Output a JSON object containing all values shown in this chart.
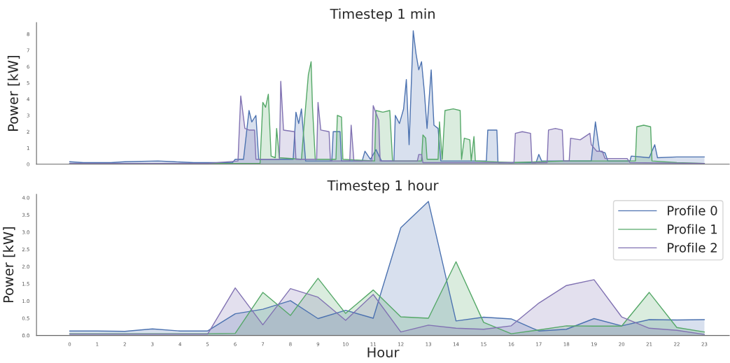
{
  "chart_data": [
    {
      "type": "area",
      "title": "Timestep 1 min",
      "ylabel": "Power [kW]",
      "xlim": [
        -1.2,
        23.9
      ],
      "ylim": [
        0,
        8.7
      ],
      "yticks": [
        0,
        1,
        2,
        3,
        4,
        5,
        6,
        7,
        8
      ],
      "tick_labels": "y",
      "grid": false,
      "legend": false,
      "series": [
        {
          "color": "#4c72b0",
          "x": [
            0,
            0.5,
            1.5,
            2,
            3.2,
            3.8,
            4.5,
            5.3,
            5.9,
            6.0,
            6.3,
            6.5,
            6.6,
            6.75,
            6.85,
            8.1,
            8.2,
            8.3,
            8.4,
            8.55,
            9.5,
            9.55,
            9.8,
            9.85,
            10.6,
            10.7,
            10.9,
            11.1,
            11.3,
            11.75,
            11.8,
            11.95,
            12.1,
            12.2,
            12.3,
            12.45,
            12.55,
            12.65,
            12.75,
            12.85,
            12.95,
            13.1,
            13.2,
            13.35,
            13.45,
            15.1,
            15.15,
            15.48,
            15.52,
            16.9,
            17.0,
            17.1,
            18.9,
            19.05,
            19.2,
            19.4,
            19.5,
            20.3,
            20.35,
            21.0,
            21.2,
            21.3,
            22.0,
            23
          ],
          "values": [
            0.15,
            0.1,
            0.1,
            0.15,
            0.2,
            0.15,
            0.1,
            0.1,
            0.1,
            0.3,
            0.3,
            3.3,
            2.6,
            3.0,
            0.3,
            0.3,
            3.2,
            2.5,
            3.4,
            0.2,
            0.2,
            2.0,
            2.0,
            0.2,
            0.2,
            0.8,
            0.3,
            0.9,
            0.2,
            0.2,
            3.0,
            2.5,
            3.4,
            5.2,
            1.2,
            8.2,
            6.8,
            5.8,
            6.3,
            4.5,
            2.2,
            5.8,
            2.4,
            2.2,
            0.2,
            0.2,
            2.1,
            2.1,
            0.1,
            0.1,
            0.6,
            0.2,
            0.2,
            2.6,
            0.8,
            0.7,
            0.2,
            0.2,
            0.5,
            0.4,
            1.2,
            0.4,
            0.45,
            0.45
          ]
        },
        {
          "color": "#55a868",
          "x": [
            0,
            3,
            5,
            6.9,
            7.0,
            7.1,
            7.2,
            7.3,
            7.45,
            7.5,
            7.6,
            8.4,
            8.5,
            8.65,
            8.75,
            8.8,
            8.9,
            9.65,
            9.7,
            9.85,
            9.9,
            11.05,
            11.1,
            11.35,
            11.6,
            11.7,
            12.75,
            12.8,
            12.9,
            12.95,
            13.35,
            13.4,
            13.5,
            13.6,
            13.9,
            14.15,
            14.2,
            14.3,
            14.5,
            14.55,
            14.65,
            14.7,
            16,
            18,
            20.5,
            20.55,
            20.8,
            21.05,
            21.1,
            22,
            23
          ],
          "values": [
            0.05,
            0.05,
            0.05,
            0.05,
            3.8,
            3.5,
            4.3,
            0.5,
            0.4,
            2.2,
            0.4,
            0.3,
            2.5,
            5.5,
            6.3,
            3.5,
            0.3,
            0.3,
            3.0,
            2.9,
            0.3,
            0.2,
            3.3,
            3.2,
            3.3,
            0.2,
            0.2,
            1.8,
            1.6,
            0.3,
            0.3,
            2.6,
            0.3,
            3.3,
            3.4,
            3.3,
            0.3,
            1.6,
            1.5,
            0.2,
            1.7,
            0.2,
            0.1,
            0.2,
            0.2,
            2.3,
            2.4,
            2.3,
            0.2,
            0.1,
            0.05
          ]
        },
        {
          "color": "#8172b2",
          "x": [
            0,
            3,
            5,
            6.1,
            6.2,
            6.35,
            6.5,
            6.7,
            6.75,
            7.6,
            7.65,
            7.75,
            8.15,
            8.2,
            8.95,
            9.0,
            9.1,
            9.4,
            9.45,
            10.15,
            10.2,
            10.3,
            10.95,
            11.0,
            11.2,
            11.25,
            12.6,
            12.65,
            12.75,
            12.8,
            16.1,
            16.15,
            16.4,
            16.7,
            16.75,
            17.3,
            17.35,
            17.6,
            17.85,
            17.9,
            18.1,
            18.15,
            18.5,
            18.85,
            18.9,
            19.1,
            19.3,
            19.4,
            20.2,
            20.3,
            23
          ],
          "values": [
            0.05,
            0.05,
            0.05,
            0.2,
            4.2,
            2.2,
            2.1,
            2.1,
            0.3,
            0.3,
            5.1,
            2.1,
            2.0,
            0.3,
            0.3,
            3.8,
            2.1,
            2.0,
            0.2,
            0.2,
            2.4,
            0.2,
            0.2,
            3.6,
            2.7,
            0.2,
            0.2,
            0.6,
            0.6,
            0.1,
            0.1,
            1.9,
            2.0,
            1.9,
            0.1,
            0.1,
            2.1,
            2.2,
            2.1,
            0.2,
            0.2,
            1.6,
            1.5,
            1.9,
            1.2,
            0.8,
            0.8,
            0.35,
            0.35,
            0.1,
            0.05
          ]
        }
      ]
    },
    {
      "type": "area",
      "title": "Timestep 1 hour",
      "ylabel": "Power [kW]",
      "xlabel": "Hour",
      "x": [
        0,
        1,
        2,
        3,
        4,
        5,
        6,
        7,
        8,
        9,
        10,
        11,
        12,
        13,
        14,
        15,
        16,
        17,
        18,
        19,
        20,
        21,
        22,
        23
      ],
      "xlim": [
        -1.2,
        23.9
      ],
      "xticks": [
        0,
        1,
        2,
        3,
        4,
        5,
        6,
        7,
        8,
        9,
        10,
        11,
        12,
        13,
        14,
        15,
        16,
        17,
        18,
        19,
        20,
        21,
        22,
        23
      ],
      "ylim": [
        0,
        4.1
      ],
      "yticks": [
        {
          "value": 0,
          "label": "0.0"
        },
        {
          "value": 0.5,
          "label": "0.5"
        },
        {
          "value": 1,
          "label": "1.0"
        },
        {
          "value": 1.5,
          "label": "1.5"
        },
        {
          "value": 2,
          "label": "2.0"
        },
        {
          "value": 2.5,
          "label": "2.5"
        },
        {
          "value": 3,
          "label": "3.0"
        },
        {
          "value": 3.5,
          "label": "3.5"
        },
        {
          "value": 4,
          "label": "4.0"
        }
      ],
      "grid": false,
      "legend": "top right",
      "series": [
        {
          "name": "Profile 0",
          "color": "#4c72b0",
          "values": [
            0.13,
            0.13,
            0.12,
            0.19,
            0.13,
            0.13,
            0.63,
            0.76,
            1.01,
            0.49,
            0.73,
            0.5,
            3.13,
            3.89,
            0.42,
            0.53,
            0.48,
            0.13,
            0.18,
            0.49,
            0.28,
            0.46,
            0.45,
            0.46
          ]
        },
        {
          "name": "Profile 1",
          "color": "#55a868",
          "values": [
            0.05,
            0.05,
            0.05,
            0.05,
            0.05,
            0.05,
            0.06,
            1.25,
            0.58,
            1.66,
            0.64,
            1.32,
            0.54,
            0.5,
            2.14,
            0.38,
            0.05,
            0.16,
            0.28,
            0.27,
            0.27,
            1.25,
            0.23,
            0.1
          ]
        },
        {
          "name": "Profile 2",
          "color": "#8172b2",
          "values": [
            0.04,
            0.04,
            0.04,
            0.04,
            0.04,
            0.04,
            1.38,
            0.31,
            1.36,
            1.11,
            0.44,
            1.19,
            0.1,
            0.3,
            0.21,
            0.18,
            0.28,
            0.94,
            1.45,
            1.62,
            0.54,
            0.21,
            0.15,
            0.03
          ]
        }
      ]
    }
  ]
}
